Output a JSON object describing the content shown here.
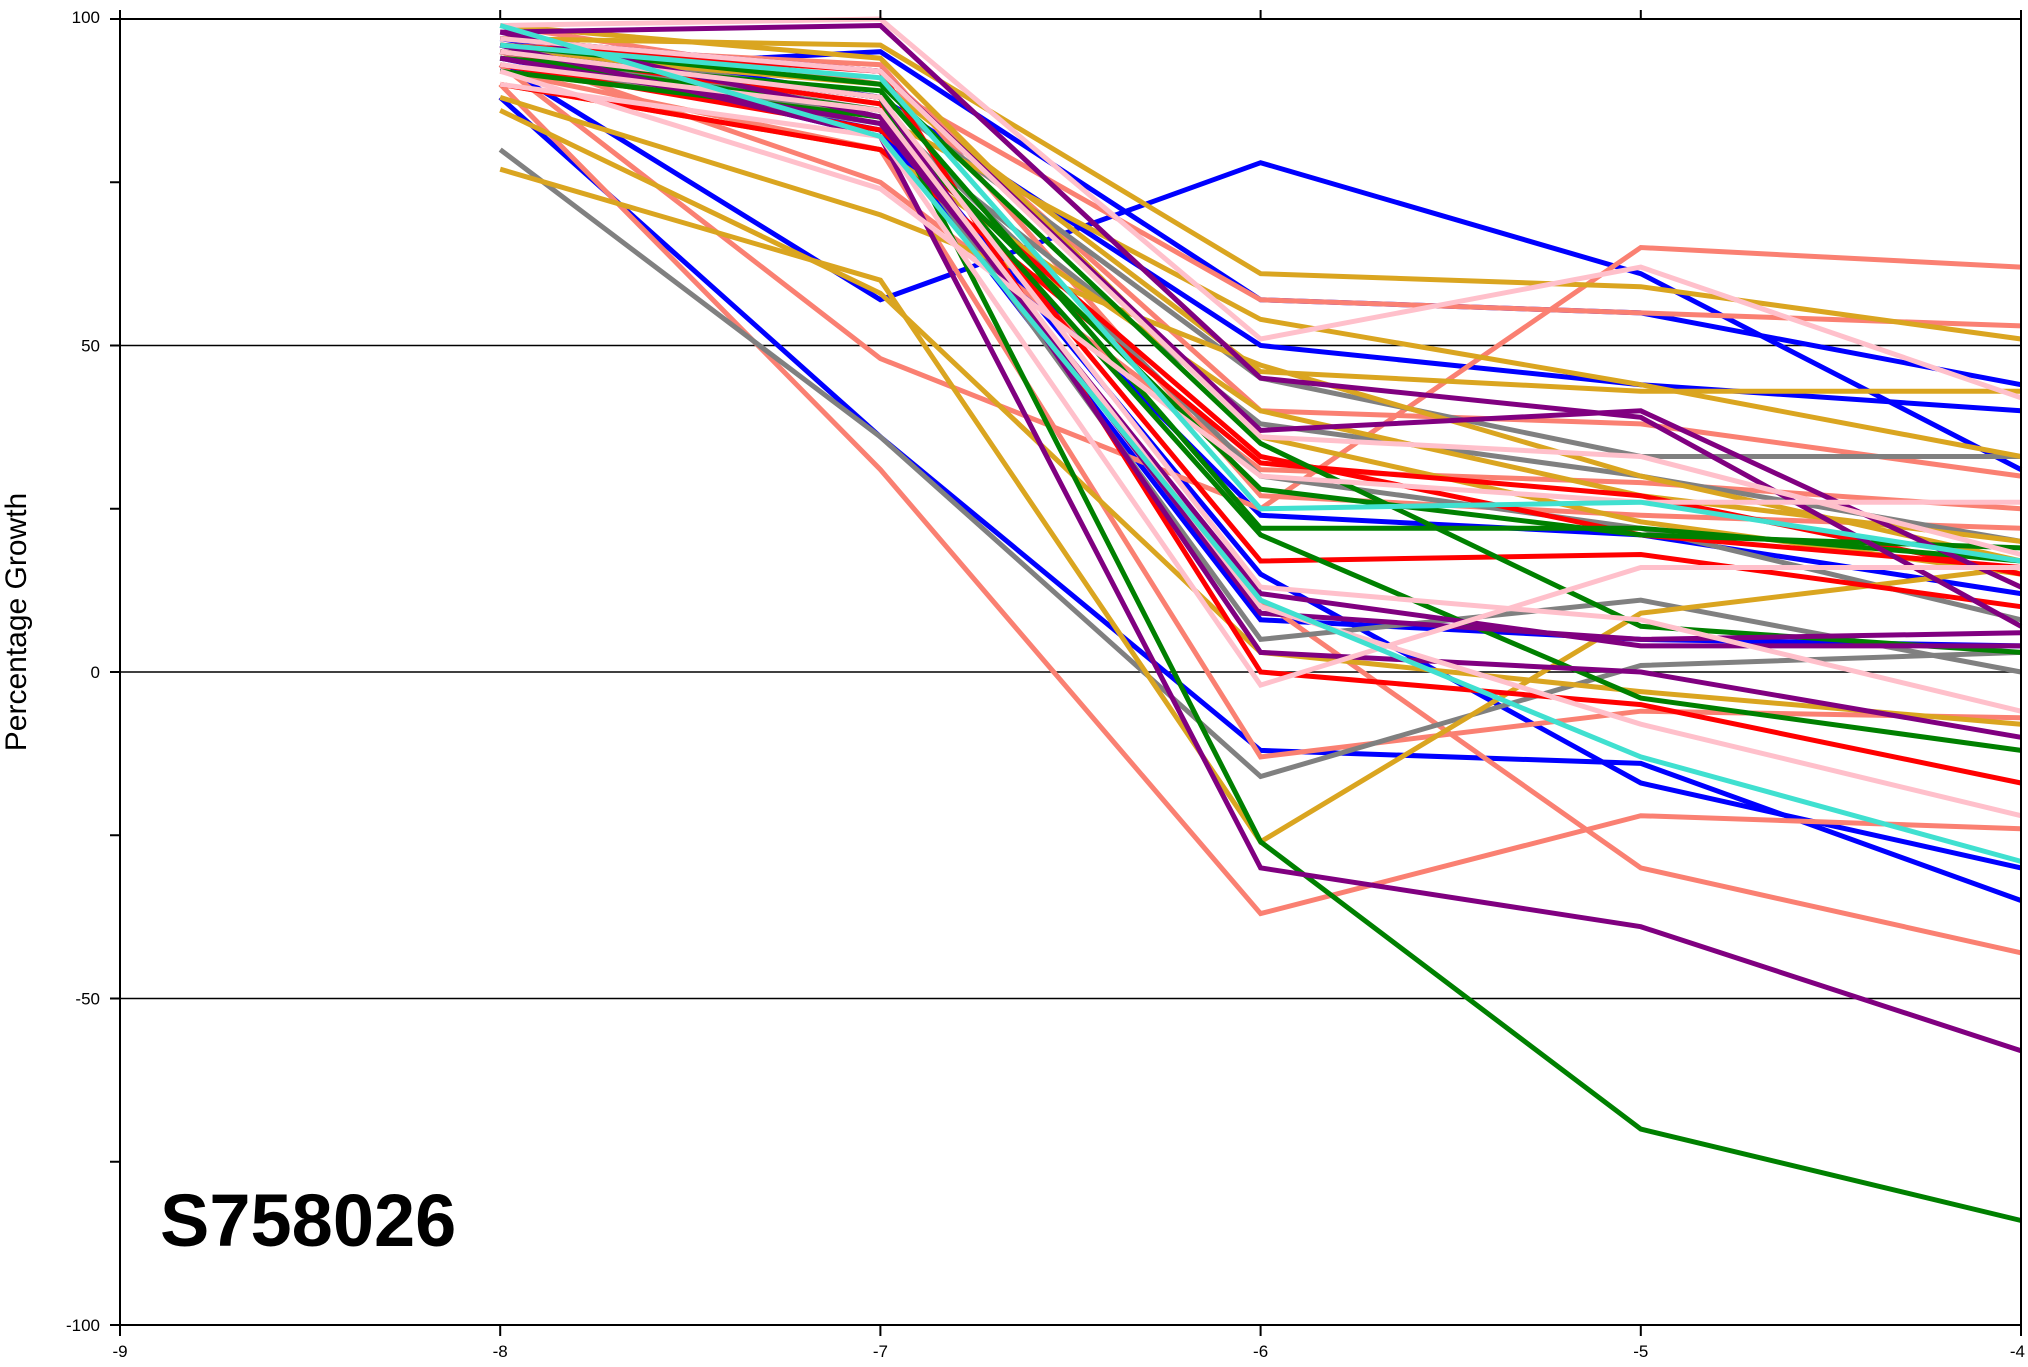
{
  "chart_data": {
    "type": "line",
    "title": "",
    "xlabel": "",
    "ylabel": "Percentage Growth",
    "annotation": "S758026",
    "xlim": [
      -9,
      -4
    ],
    "ylim": [
      -100,
      100
    ],
    "x_ticks": [
      -9,
      -8,
      -7,
      -6,
      -5,
      -4
    ],
    "x_tick_labels": [
      "-9",
      "-8",
      "-7",
      "-6",
      "-5",
      "-4"
    ],
    "y_ticks": [
      -100,
      -50,
      0,
      50,
      100
    ],
    "y_tick_labels": [
      "-100",
      "-50",
      "0",
      "50",
      "100"
    ],
    "y_minor_ticks": [
      -75,
      -25,
      25,
      75
    ],
    "grid_y": [
      -50,
      0,
      50
    ],
    "legend": "none",
    "x": [
      -8,
      -7,
      -6,
      -5,
      -4
    ],
    "series": [
      {
        "color": "#0000ff",
        "values": [
          93,
          57,
          78,
          61,
          31
        ]
      },
      {
        "color": "#0000ff",
        "values": [
          92,
          95,
          57,
          55,
          44
        ]
      },
      {
        "color": "#0000ff",
        "values": [
          88,
          36,
          -12,
          -14,
          -35
        ]
      },
      {
        "color": "#0000ff",
        "values": [
          97,
          88,
          50,
          44,
          40
        ]
      },
      {
        "color": "#0000ff",
        "values": [
          95,
          85,
          15,
          -17,
          -30
        ]
      },
      {
        "color": "#0000ff",
        "values": [
          96,
          82,
          24,
          21,
          12
        ]
      },
      {
        "color": "#0000ff",
        "values": [
          94,
          83,
          8,
          5,
          4
        ]
      },
      {
        "color": "#fa8072",
        "values": [
          90,
          31,
          -37,
          -22,
          -24
        ]
      },
      {
        "color": "#fa8072",
        "values": [
          93,
          48,
          25,
          65,
          62
        ]
      },
      {
        "color": "#fa8072",
        "values": [
          95,
          75,
          31,
          29,
          25
        ]
      },
      {
        "color": "#fa8072",
        "values": [
          99,
          90,
          57,
          55,
          53
        ]
      },
      {
        "color": "#fa8072",
        "values": [
          94,
          85,
          11,
          -30,
          -43
        ]
      },
      {
        "color": "#fa8072",
        "values": [
          92,
          80,
          -13,
          -6,
          -7
        ]
      },
      {
        "color": "#fa8072",
        "values": [
          97,
          92,
          40,
          38,
          30
        ]
      },
      {
        "color": "#fa8072",
        "values": [
          96,
          93,
          27,
          24,
          22
        ]
      },
      {
        "color": "#808080",
        "values": [
          80,
          36,
          -16,
          1,
          3
        ]
      },
      {
        "color": "#808080",
        "values": [
          96,
          88,
          45,
          33,
          33
        ]
      },
      {
        "color": "#808080",
        "values": [
          94,
          85,
          5,
          11,
          0
        ]
      },
      {
        "color": "#808080",
        "values": [
          95,
          86,
          30,
          22,
          8
        ]
      },
      {
        "color": "#808080",
        "values": [
          93,
          84,
          38,
          30,
          20
        ]
      },
      {
        "color": "#daa520",
        "values": [
          77,
          60,
          -26,
          9,
          16
        ]
      },
      {
        "color": "#daa520",
        "values": [
          86,
          58,
          3,
          -3,
          -8
        ]
      },
      {
        "color": "#daa520",
        "values": [
          97,
          96,
          61,
          59,
          51
        ]
      },
      {
        "color": "#daa520",
        "values": [
          92,
          85,
          54,
          44,
          33
        ]
      },
      {
        "color": "#daa520",
        "values": [
          95,
          90,
          46,
          43,
          43
        ]
      },
      {
        "color": "#daa520",
        "values": [
          90,
          80,
          40,
          27,
          20
        ]
      },
      {
        "color": "#daa520",
        "values": [
          99,
          94,
          36,
          23,
          15
        ]
      },
      {
        "color": "#daa520",
        "values": [
          88,
          70,
          47,
          30,
          17
        ]
      },
      {
        "color": "#ff0000",
        "values": [
          96,
          92,
          0,
          -5,
          -17
        ]
      },
      {
        "color": "#ff0000",
        "values": [
          95,
          87,
          17,
          18,
          10
        ]
      },
      {
        "color": "#ff0000",
        "values": [
          90,
          80,
          32,
          27,
          15
        ]
      },
      {
        "color": "#ff0000",
        "values": [
          93,
          83,
          33,
          21,
          16
        ]
      },
      {
        "color": "#008000",
        "values": [
          95,
          88,
          -26,
          -70,
          -84
        ]
      },
      {
        "color": "#008000",
        "values": [
          94,
          86,
          21,
          -4,
          -12
        ]
      },
      {
        "color": "#008000",
        "values": [
          92,
          85,
          28,
          21,
          19
        ]
      },
      {
        "color": "#008000",
        "values": [
          96,
          90,
          35,
          7,
          3
        ]
      },
      {
        "color": "#008000",
        "values": [
          94,
          89,
          22,
          22,
          17
        ]
      },
      {
        "color": "#800080",
        "values": [
          96,
          82,
          -30,
          -39,
          -58
        ]
      },
      {
        "color": "#800080",
        "values": [
          98,
          85,
          9,
          5,
          6
        ]
      },
      {
        "color": "#800080",
        "values": [
          97,
          92,
          37,
          40,
          13
        ]
      },
      {
        "color": "#800080",
        "values": [
          95,
          88,
          3,
          0,
          -10
        ]
      },
      {
        "color": "#800080",
        "values": [
          98,
          99,
          45,
          39,
          7
        ]
      },
      {
        "color": "#800080",
        "values": [
          94,
          84,
          12,
          4,
          4
        ]
      },
      {
        "color": "#ffc0cb",
        "values": [
          99,
          100,
          51,
          62,
          42
        ]
      },
      {
        "color": "#ffc0cb",
        "values": [
          93,
          86,
          10,
          -8,
          -22
        ]
      },
      {
        "color": "#ffc0cb",
        "values": [
          90,
          82,
          -2,
          16,
          16
        ]
      },
      {
        "color": "#ffc0cb",
        "values": [
          92,
          74,
          30,
          26,
          26
        ]
      },
      {
        "color": "#ffc0cb",
        "values": [
          97,
          92,
          36,
          33,
          18
        ]
      },
      {
        "color": "#ffc0cb",
        "values": [
          95,
          88,
          13,
          8,
          -6
        ]
      },
      {
        "color": "#40e0d0",
        "values": [
          99,
          82,
          11,
          -13,
          -29
        ]
      },
      {
        "color": "#40e0d0",
        "values": [
          96,
          91,
          25,
          26,
          17
        ]
      }
    ]
  }
}
